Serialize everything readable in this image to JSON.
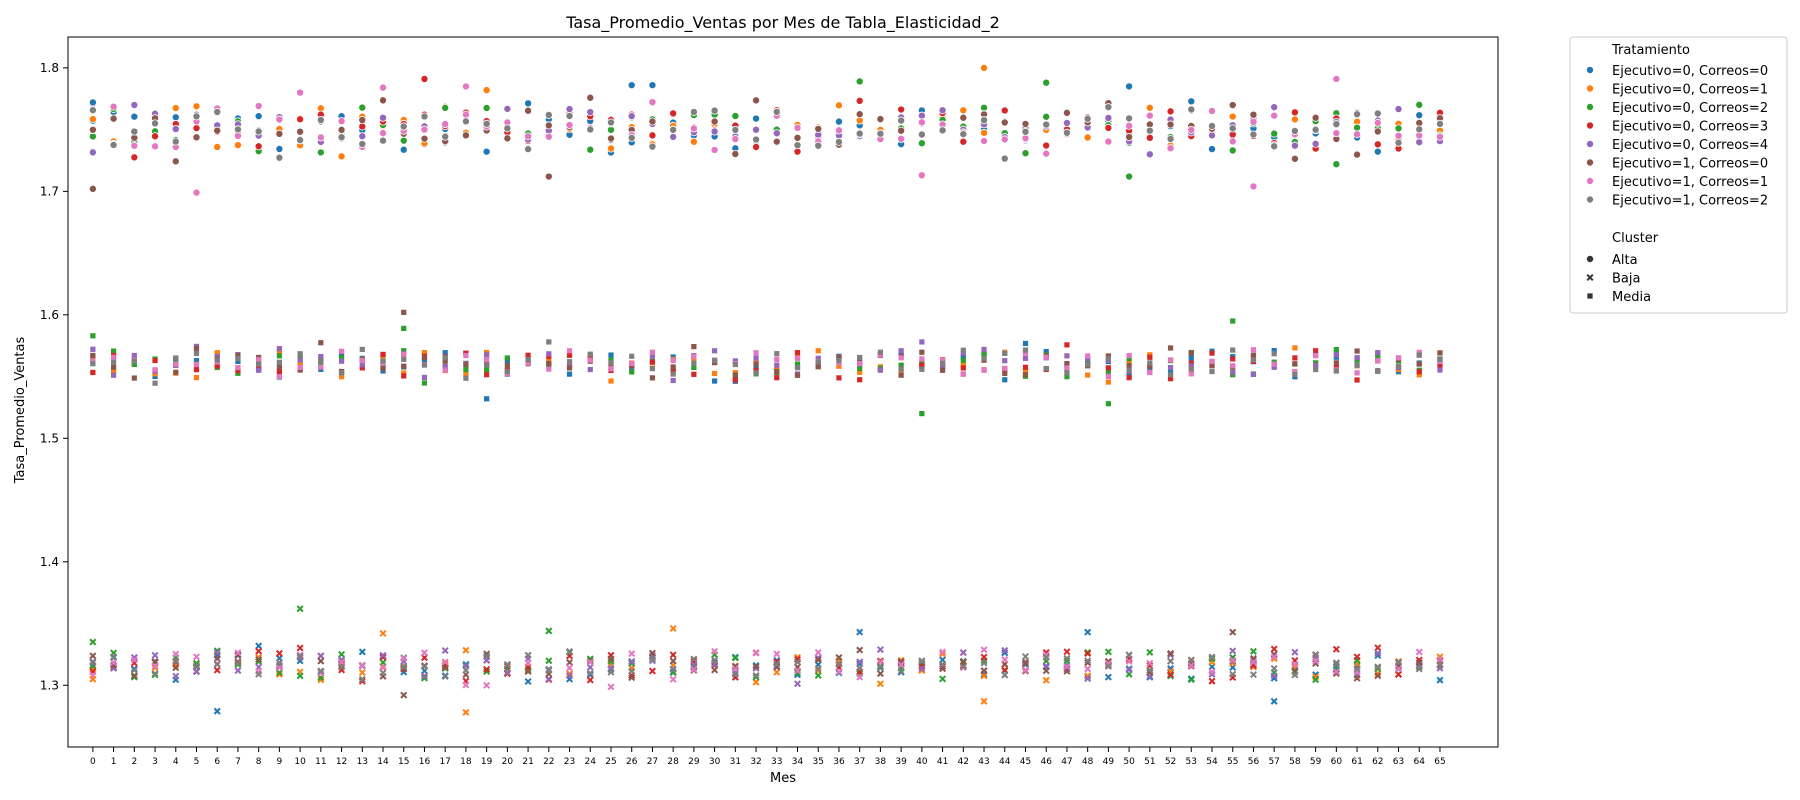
{
  "chart_data": {
    "type": "scatter",
    "title": "Tasa_Promedio_Ventas por Mes de Tabla_Elasticidad_2",
    "xlabel": "Mes",
    "ylabel": "Tasa_Promedio_Ventas",
    "x_ticks": [
      0,
      1,
      2,
      3,
      4,
      5,
      6,
      7,
      8,
      9,
      10,
      11,
      12,
      13,
      14,
      15,
      16,
      17,
      18,
      19,
      20,
      21,
      22,
      23,
      24,
      25,
      26,
      27,
      28,
      29,
      30,
      31,
      32,
      33,
      34,
      35,
      36,
      37,
      38,
      39,
      40,
      41,
      42,
      43,
      44,
      45,
      46,
      47,
      48,
      49,
      50,
      51,
      52,
      53,
      54,
      55,
      56,
      57,
      58,
      59,
      60,
      61,
      62,
      63,
      64,
      65
    ],
    "xlim": [
      -1.2,
      67.8
    ],
    "ylim": [
      1.25,
      1.825
    ],
    "y_ticks": [
      "1.3",
      "1.4",
      "1.5",
      "1.6",
      "1.7",
      "1.8"
    ],
    "grid": false,
    "legend_position": "outside top-right",
    "hue_title": "Tratamiento",
    "style_title": "Cluster",
    "series": [
      {
        "name": "Ejecutivo=0, Correos=0",
        "color": "#1f77b4"
      },
      {
        "name": "Ejecutivo=0, Correos=1",
        "color": "#ff7f0e"
      },
      {
        "name": "Ejecutivo=0, Correos=2",
        "color": "#2ca02c"
      },
      {
        "name": "Ejecutivo=0, Correos=3",
        "color": "#d62728"
      },
      {
        "name": "Ejecutivo=0, Correos=4",
        "color": "#9467bd"
      },
      {
        "name": "Ejecutivo=1, Correos=0",
        "color": "#8c564b"
      },
      {
        "name": "Ejecutivo=1, Correos=1",
        "color": "#e377c2"
      },
      {
        "name": "Ejecutivo=1, Correos=2",
        "color": "#7f7f7f"
      }
    ],
    "clusters": [
      {
        "name": "Alta",
        "marker": "circle",
        "center": 1.751,
        "spread": 0.018
      },
      {
        "name": "Baja",
        "marker": "x",
        "center": 1.316,
        "spread": 0.012
      },
      {
        "name": "Media",
        "marker": "square",
        "center": 1.561,
        "spread": 0.012
      }
    ],
    "points": [
      [
        0,
        1.772,
        0,
        0
      ],
      [
        0,
        1.702,
        5,
        0
      ],
      [
        0,
        1.583,
        2,
        2
      ],
      [
        0,
        1.335,
        2,
        1
      ],
      [
        0,
        1.305,
        1,
        1
      ],
      [
        5,
        1.699,
        6,
        0
      ],
      [
        6,
        1.279,
        0,
        1
      ],
      [
        10,
        1.78,
        6,
        0
      ],
      [
        10,
        1.362,
        2,
        1
      ],
      [
        14,
        1.784,
        6,
        0
      ],
      [
        14,
        1.342,
        1,
        1
      ],
      [
        15,
        1.602,
        5,
        2
      ],
      [
        15,
        1.589,
        2,
        2
      ],
      [
        15,
        1.292,
        5,
        1
      ],
      [
        16,
        1.791,
        3,
        0
      ],
      [
        18,
        1.785,
        6,
        0
      ],
      [
        18,
        1.278,
        1,
        1
      ],
      [
        19,
        1.782,
        1,
        0
      ],
      [
        19,
        1.532,
        0,
        2
      ],
      [
        22,
        1.344,
        2,
        1
      ],
      [
        22,
        1.712,
        5,
        0
      ],
      [
        26,
        1.786,
        0,
        0
      ],
      [
        27,
        1.786,
        0,
        0
      ],
      [
        28,
        1.346,
        1,
        1
      ],
      [
        37,
        1.789,
        2,
        0
      ],
      [
        40,
        1.713,
        6,
        0
      ],
      [
        40,
        1.52,
        2,
        2
      ],
      [
        43,
        1.8,
        1,
        0
      ],
      [
        43,
        1.287,
        1,
        1
      ],
      [
        46,
        1.788,
        2,
        0
      ],
      [
        49,
        1.528,
        2,
        2
      ],
      [
        50,
        1.785,
        0,
        0
      ],
      [
        50,
        1.712,
        2,
        0
      ],
      [
        55,
        1.595,
        2,
        2
      ],
      [
        55,
        1.343,
        5,
        1
      ],
      [
        56,
        1.704,
        6,
        0
      ],
      [
        57,
        1.287,
        0,
        1
      ],
      [
        60,
        1.791,
        6,
        0
      ],
      [
        60,
        1.722,
        2,
        0
      ],
      [
        48,
        1.343,
        0,
        1
      ],
      [
        37,
        1.343,
        0,
        1
      ]
    ]
  }
}
